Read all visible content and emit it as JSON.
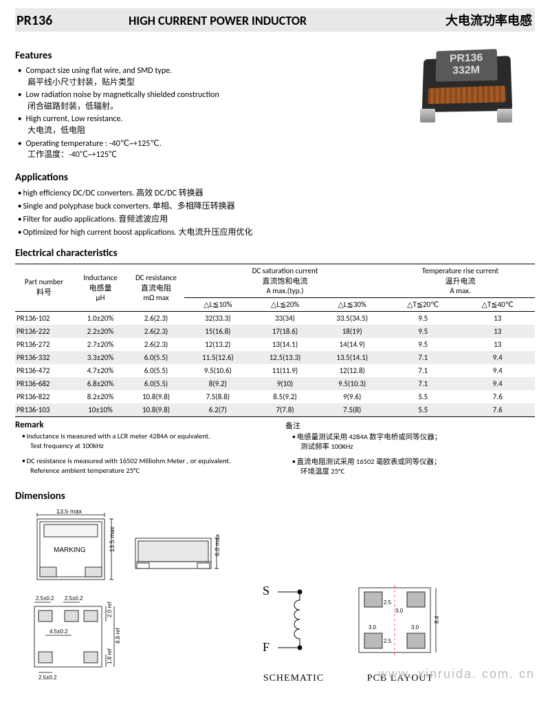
{
  "header": {
    "part_code": "PR136",
    "title_en": "HIGH CURRENT POWER INDUCTOR",
    "title_zh": "大电流功率电感"
  },
  "product_image": {
    "marking_line1": "PR136",
    "marking_line2": "332M"
  },
  "features": {
    "heading": "Features",
    "items": [
      {
        "en": "Compact size using flat wire, and SMD type.",
        "zh": "扁平线小尺寸封装，贴片类型"
      },
      {
        "en": "Low radiation noise by magnetically shielded construction",
        "zh": "闭合磁路封装，低辐射。"
      },
      {
        "en": "High current, Low resistance.",
        "zh": "大电流，低电阻"
      },
      {
        "en": "Operating temperature : -40℃~+125℃.",
        "zh": "工作温度：-40℃~+125℃"
      }
    ]
  },
  "applications": {
    "heading": "Applications",
    "items": [
      "high efficiency DC/DC converters.  高效 DC/DC 转换器",
      "Single and polyphase buck converters.  单相、多相降压转换器",
      "Filter for audio applications.  音频滤波应用",
      "Optimized for high current boost applications.  大电流升压应用优化"
    ]
  },
  "electrical": {
    "heading": "Electrical  characteristics",
    "columns": {
      "part_number": {
        "l1": "Part number",
        "l2": "料号",
        "l3": ""
      },
      "inductance": {
        "l1": "Inductance",
        "l2": "电感量",
        "l3": "μH"
      },
      "dcr": {
        "l1": "DC resistance",
        "l2": "直流电阻",
        "l3": "mΩ max"
      },
      "sat_group": {
        "l1": "DC saturation current",
        "l2": "直流饱和电流",
        "l3": "A max.(typ.)"
      },
      "sat_sub": [
        "△L≦10%",
        "△L≦20%",
        "△L≦30%"
      ],
      "temp_group": {
        "l1": "Temperature rise current",
        "l2": "温升电流",
        "l3": "A max."
      },
      "temp_sub": [
        "△T≦20℃",
        "△T≦40℃"
      ]
    },
    "rows": [
      [
        "PR136-102",
        "1.0±20%",
        "2.6(2.3)",
        "32(33.3)",
        "33(34)",
        "33.5(34.5)",
        "9.5",
        "13"
      ],
      [
        "PR136-222",
        "2.2±20%",
        "2.6(2.3)",
        "15(16.8)",
        "17(18.6)",
        "18(19)",
        "9.5",
        "13"
      ],
      [
        "PR136-272",
        "2.7±20%",
        "2.6(2.3)",
        "12(13.2)",
        "13(14.1)",
        "14(14.9)",
        "9.5",
        "13"
      ],
      [
        "PR136-332",
        "3.3±20%",
        "6.0(5.5)",
        "11.5(12.6)",
        "12.5(13.3)",
        "13.5(14.1)",
        "7.1",
        "9.4"
      ],
      [
        "PR136-472",
        "4.7±20%",
        "6.0(5.5)",
        "9.5(10.6)",
        "11(11.9)",
        "12(12.8)",
        "7.1",
        "9.4"
      ],
      [
        "PR136-682",
        "6.8±20%",
        "6.0(5.5)",
        "8(9.2)",
        "9(10)",
        "9.5(10.3)",
        "7.1",
        "9.4"
      ],
      [
        "PR136-822",
        "8.2±20%",
        "10.8(9.8)",
        "7.5(8.8)",
        "8.5(9.2)",
        "9(9.6)",
        "5.5",
        "7.6"
      ],
      [
        "PR136-103",
        "10±10%",
        "10.8(9.8)",
        "6.2(7)",
        "7(7.8)",
        "7.5(8)",
        "5.5",
        "7.6"
      ]
    ]
  },
  "remark": {
    "heading_en": "Remark",
    "heading_zh": "备注",
    "en": [
      {
        "l1": "Inductance is measured with a LCR meter 4284A or equivalent.",
        "l2": "Test frequency at 100kHz"
      },
      {
        "l1": "DC resistance is measured with 16502 Milliohm Meter , or equivalent.",
        "l2": "Reference ambient temperature 25°C"
      }
    ],
    "zh": [
      {
        "l1": "电感量测试采用 4284A  数字电桥或同等仪器；",
        "l2": "测试频率 100KHz"
      },
      {
        "l1": "直流电阻测试采用 16502 毫欧表或同等仪器；",
        "l2": "环境温度 25°C"
      }
    ]
  },
  "dimensions": {
    "heading": "Dimensions",
    "top_w": "13.5 max",
    "top_h": "13.5 max",
    "side_h": "6.0 max",
    "marking_text": "MARKING",
    "bot_a": "2.5±0.2",
    "bot_b": "2.5±0.2",
    "bot_c": "4.5±0.2",
    "bot_d": "2.5±0.2",
    "ref_a": "2.0 ref",
    "ref_b": "8.8 ref",
    "ref_c": "1.8 ref",
    "schematic": {
      "s": "S",
      "f": "F",
      "label": "SCHEMATIC"
    },
    "pcb": {
      "w": "8.4",
      "a": "2.5",
      "b": "3.0",
      "c": "3.0",
      "d": "3.0",
      "e": "2.5",
      "label": "PCB LAYOUT"
    }
  },
  "watermark": "www. xinruida. com. cn"
}
